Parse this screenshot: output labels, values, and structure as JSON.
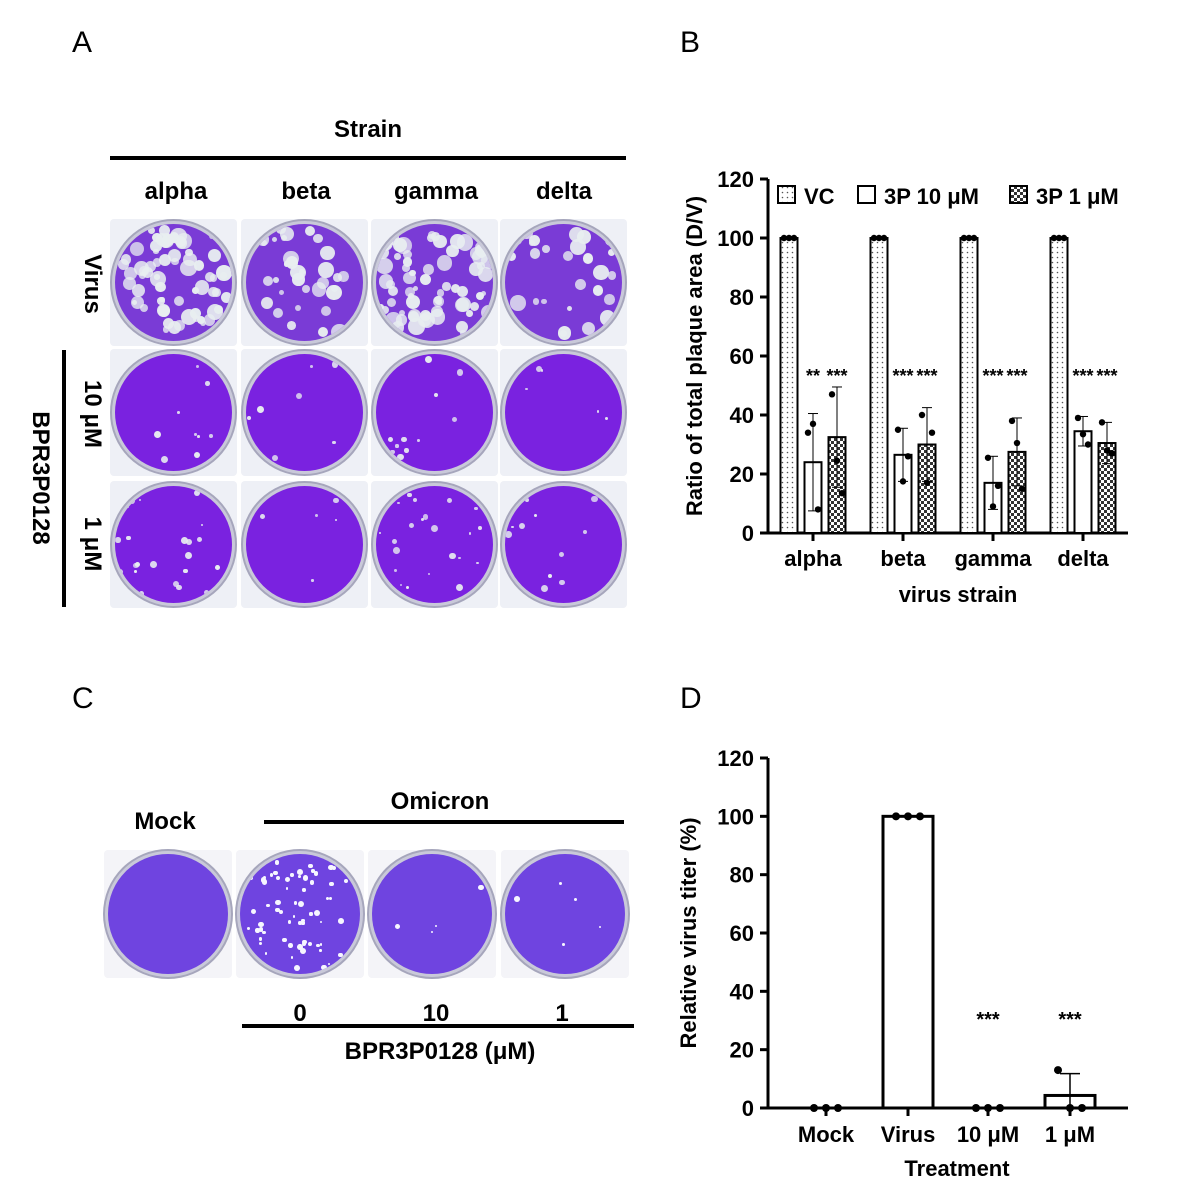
{
  "panels": {
    "A": "A",
    "B": "B",
    "C": "C",
    "D": "D"
  },
  "panel_a": {
    "header": "Strain",
    "columns": [
      "alpha",
      "beta",
      "gamma",
      "delta"
    ],
    "row_virus": "Virus",
    "row_10": "10 μM",
    "row_1": "1 μM",
    "compound": "BPR3P0128",
    "plaque_density": [
      [
        1.0,
        0.45,
        1.0,
        0.35
      ],
      [
        0.08,
        0.06,
        0.12,
        0.02
      ],
      [
        0.25,
        0.02,
        0.3,
        0.1
      ]
    ]
  },
  "panel_c": {
    "mock": "Mock",
    "omicron": "Omicron",
    "doses": [
      "0",
      "10",
      "1"
    ],
    "axis": "BPR3P0128 (μM)"
  },
  "chart_data": [
    {
      "type": "bar",
      "title": "",
      "xlabel": "virus strain",
      "ylabel": "Ratio of total plaque area (D/V)",
      "categories": [
        "alpha",
        "beta",
        "gamma",
        "delta"
      ],
      "ylim": [
        0,
        120
      ],
      "yticks": [
        0,
        20,
        40,
        60,
        80,
        100,
        120
      ],
      "legend_placement": "top",
      "series": [
        {
          "name": "VC",
          "pattern": "dots",
          "values": [
            100,
            100,
            100,
            100
          ],
          "errors": [
            0,
            0,
            0,
            0
          ],
          "points": [
            [
              100,
              100,
              100
            ],
            [
              100,
              100,
              100
            ],
            [
              100,
              100,
              100
            ],
            [
              100,
              100,
              100
            ]
          ]
        },
        {
          "name": "3P 10 μM",
          "pattern": "none",
          "values": [
            24,
            26.5,
            17,
            34.5
          ],
          "errors": [
            16.5,
            9,
            9,
            5
          ],
          "points": [
            [
              34,
              37,
              8
            ],
            [
              35,
              17.5,
              26
            ],
            [
              25.5,
              9,
              16
            ],
            [
              39,
              33.5,
              30
            ]
          ]
        },
        {
          "name": "3P 1 μM",
          "pattern": "checker",
          "values": [
            32.5,
            30,
            27.5,
            30.5
          ],
          "errors": [
            17,
            12.5,
            11.5,
            7
          ],
          "points": [
            [
              47,
              24.5,
              13.5
            ],
            [
              40,
              17,
              34
            ],
            [
              38,
              30.5,
              15
            ],
            [
              37.5,
              28,
              27
            ]
          ]
        }
      ],
      "annotations": [
        [
          "**",
          "***"
        ],
        [
          "***",
          "***"
        ],
        [
          "***",
          "***"
        ],
        [
          "***",
          "***"
        ]
      ]
    },
    {
      "type": "bar",
      "title": "",
      "xlabel": "Treatment",
      "ylabel": "Relative virus titer (%)",
      "categories": [
        "Mock",
        "Virus",
        "10 μM",
        "1 μM"
      ],
      "ylim": [
        0,
        120
      ],
      "yticks": [
        0,
        20,
        40,
        60,
        80,
        100,
        120
      ],
      "values": [
        0,
        100,
        0,
        4.3
      ],
      "errors": [
        0,
        0,
        0,
        7.5
      ],
      "points": [
        [
          0,
          0,
          0
        ],
        [
          100,
          100,
          100
        ],
        [
          0,
          0,
          0
        ],
        [
          13,
          0,
          0
        ]
      ],
      "annotations": [
        "",
        "",
        "***",
        "***"
      ]
    }
  ]
}
